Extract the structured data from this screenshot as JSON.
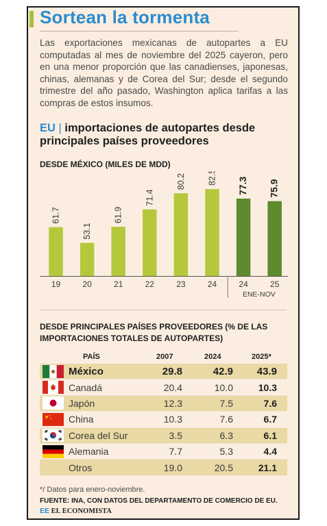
{
  "header": {
    "title": "Sortean la tormenta",
    "intro": "Las exportaciones mexicanas de autopartes a EU computadas al mes de noviembre del 2025 cayeron, pero en una menor proporción que las canadienses, japonesas, chinas, alemanas y de Corea del Sur; desde el segundo trimestre del año pasado, Washington aplica tarifas a las compras de estos insumos."
  },
  "section": {
    "eu": "EU",
    "pipe": "|",
    "title": "importaciones de autopartes desde principales países proveedores"
  },
  "colors": {
    "title_blue": "#2b8ccf",
    "bar_light": "#b5c83c",
    "bar_dark": "#5f8a2e",
    "row_shade": "#e9d9a4",
    "background": "#fbeee0"
  },
  "chart_data": {
    "type": "bar",
    "title": "DESDE MÉXICO (MILES DE MDD)",
    "categories": [
      "19",
      "20",
      "21",
      "22",
      "23",
      "24",
      "24",
      "25"
    ],
    "values": [
      61.7,
      53.1,
      61.9,
      71.4,
      80.2,
      82.5,
      77.3,
      75.9
    ],
    "value_labels": [
      "61.7",
      "53.1",
      "61.9",
      "71.4",
      "80.2",
      "82.5",
      "77.3",
      "75.9"
    ],
    "group_label": "ENE-NOV",
    "highlight_last": 2,
    "ylim": [
      35,
      90
    ],
    "grid": false
  },
  "table": {
    "title": "DESDE PRINCIPALES PAÍSES PROVEEDORES (% DE LAS IMPORTACIONES TOTALES DE AUTOPARTES)",
    "headers": {
      "country": "PAÍS",
      "c2007": "2007",
      "c2024": "2024",
      "c2025": "2025*"
    },
    "rows": [
      {
        "flag": "mexico-flag-icon",
        "name": "México",
        "v2007": "29.8",
        "v2024": "42.9",
        "v2025": "43.9"
      },
      {
        "flag": "canada-flag-icon",
        "name": "Canadá",
        "v2007": "20.4",
        "v2024": "10.0",
        "v2025": "10.3"
      },
      {
        "flag": "japan-flag-icon",
        "name": "Japón",
        "v2007": "12.3",
        "v2024": "7.5",
        "v2025": "7.6"
      },
      {
        "flag": "china-flag-icon",
        "name": "China",
        "v2007": "10.3",
        "v2024": "7.6",
        "v2025": "6.7"
      },
      {
        "flag": "south-korea-flag-icon",
        "name": "Corea del Sur",
        "v2007": "3.5",
        "v2024": "6.3",
        "v2025": "6.1"
      },
      {
        "flag": "germany-flag-icon",
        "name": "Alemania",
        "v2007": "7.7",
        "v2024": "5.3",
        "v2025": "4.4"
      },
      {
        "flag": "",
        "name": "Otros",
        "v2007": "19.0",
        "v2024": "20.5",
        "v2025": "21.1"
      }
    ]
  },
  "footer": {
    "note": "*/ Datos para enero-noviembre.",
    "source": "FUENTE: INA, CON DATOS DEL DEPARTAMENTO DE COMERCIO DE EU.",
    "logo_mark": "EE",
    "logo": "EL ECONOMISTA"
  }
}
